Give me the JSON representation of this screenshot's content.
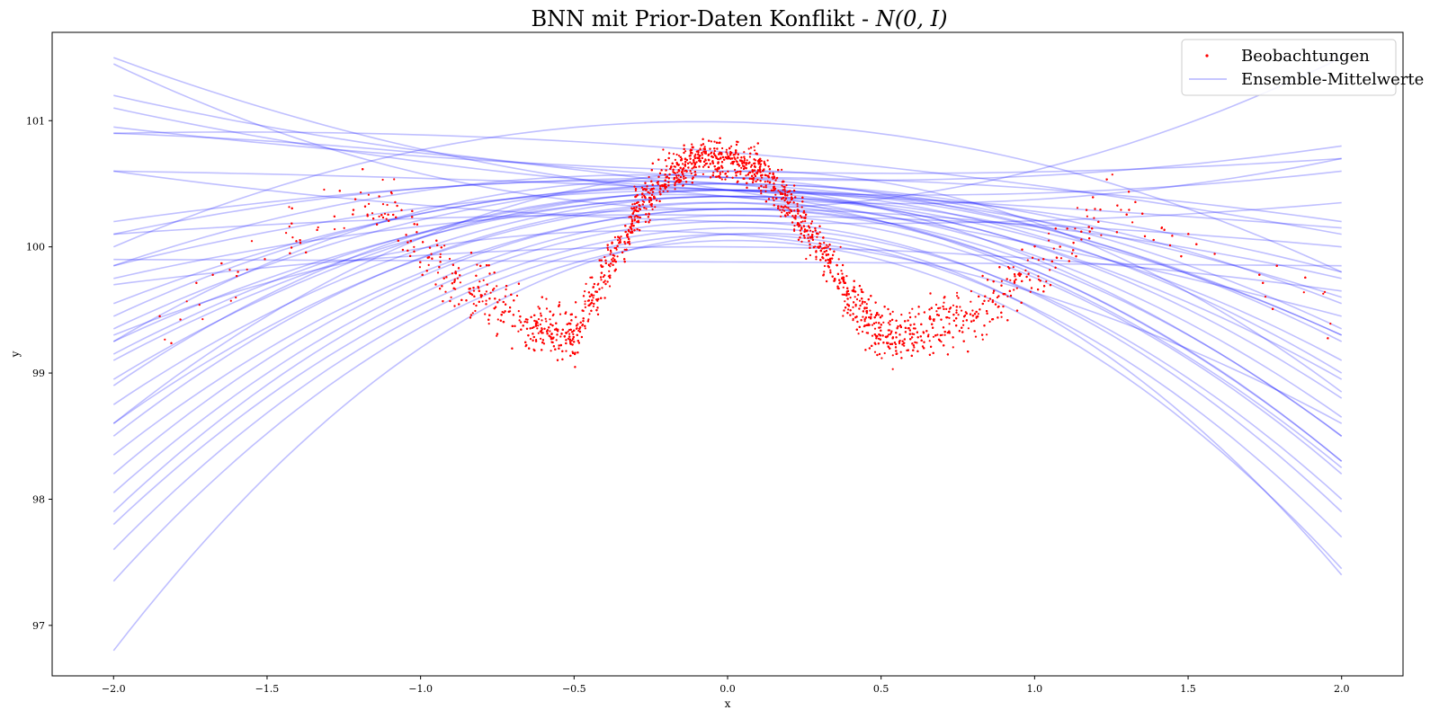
{
  "chart_data": {
    "type": "line",
    "title": "BNN mit Prior-Daten Konflikt - ",
    "title_math": "N(0, I)",
    "xlabel": "x",
    "ylabel": "y",
    "xlim": [
      -2.2,
      2.2
    ],
    "ylim": [
      96.6,
      101.7
    ],
    "x_ticks": [
      -2.0,
      -1.5,
      -1.0,
      -0.5,
      0.0,
      0.5,
      1.0,
      1.5,
      2.0
    ],
    "x_tick_labels": [
      "−2.0",
      "−1.5",
      "−1.0",
      "−0.5",
      "0.0",
      "0.5",
      "1.0",
      "1.5",
      "2.0"
    ],
    "y_ticks": [
      97,
      98,
      99,
      100,
      101
    ],
    "y_tick_labels": [
      "97",
      "98",
      "99",
      "100",
      "101"
    ],
    "grid": false,
    "legend": {
      "position": "top-right",
      "entries": [
        {
          "label": "Beobachtungen",
          "marker": "dot",
          "color": "#ff0000"
        },
        {
          "label": "Ensemble-Mittelwerte",
          "marker": "line",
          "color": "#0000ff",
          "alpha": 0.25
        }
      ]
    },
    "series": [
      {
        "name": "Beobachtungen",
        "kind": "scatter",
        "color": "#ff0000",
        "x_range": [
          -1.85,
          2.05
        ],
        "trend": [
          [
            -1.8,
            99.4
          ],
          [
            -1.6,
            99.8
          ],
          [
            -1.4,
            100.1
          ],
          [
            -1.2,
            100.3
          ],
          [
            -1.1,
            100.3
          ],
          [
            -1.0,
            100.0
          ],
          [
            -0.9,
            99.75
          ],
          [
            -0.8,
            99.6
          ],
          [
            -0.7,
            99.45
          ],
          [
            -0.6,
            99.35
          ],
          [
            -0.5,
            99.3
          ],
          [
            -0.4,
            99.8
          ],
          [
            -0.3,
            100.25
          ],
          [
            -0.2,
            100.55
          ],
          [
            -0.1,
            100.7
          ],
          [
            0.0,
            100.7
          ],
          [
            0.1,
            100.6
          ],
          [
            0.2,
            100.35
          ],
          [
            0.3,
            100.0
          ],
          [
            0.4,
            99.6
          ],
          [
            0.5,
            99.3
          ],
          [
            0.6,
            99.3
          ],
          [
            0.7,
            99.4
          ],
          [
            0.8,
            99.45
          ],
          [
            0.9,
            99.6
          ],
          [
            1.0,
            99.8
          ],
          [
            1.1,
            100.0
          ],
          [
            1.2,
            100.2
          ],
          [
            1.3,
            100.3
          ],
          [
            1.4,
            100.2
          ],
          [
            1.5,
            100.0
          ],
          [
            1.7,
            99.7
          ],
          [
            2.0,
            99.5
          ]
        ]
      },
      {
        "name": "Ensemble-Mittelwerte",
        "kind": "lines",
        "color": "#0000ff",
        "alpha": 0.25,
        "x": [
          -2.0,
          2.0
        ],
        "curves": [
          [
            96.8,
            100.1,
            97.4
          ],
          [
            97.35,
            100.05,
            97.45
          ],
          [
            97.6,
            100.1,
            97.7
          ],
          [
            97.8,
            100.15,
            98.0
          ],
          [
            97.9,
            100.2,
            97.9
          ],
          [
            98.05,
            100.25,
            98.2
          ],
          [
            98.2,
            100.3,
            98.3
          ],
          [
            98.35,
            100.3,
            98.5
          ],
          [
            98.5,
            100.35,
            98.3
          ],
          [
            98.6,
            100.35,
            98.65
          ],
          [
            98.75,
            100.4,
            98.8
          ],
          [
            98.9,
            100.4,
            98.25
          ],
          [
            98.95,
            100.45,
            99.0
          ],
          [
            99.1,
            100.4,
            99.1
          ],
          [
            99.15,
            100.45,
            99.25
          ],
          [
            99.25,
            100.5,
            98.5
          ],
          [
            99.25,
            100.4,
            99.3
          ],
          [
            99.35,
            100.5,
            99.35
          ],
          [
            99.45,
            100.45,
            98.95
          ],
          [
            99.55,
            100.5,
            99.55
          ],
          [
            99.7,
            100.0,
            99.65
          ],
          [
            99.75,
            100.3,
            99.75
          ],
          [
            99.85,
            100.45,
            99.8
          ],
          [
            99.9,
            99.88,
            99.85
          ],
          [
            100.1,
            100.25,
            100.0
          ],
          [
            100.1,
            100.5,
            99.6
          ],
          [
            100.2,
            100.55,
            100.2
          ],
          [
            100.6,
            100.45,
            100.15
          ],
          [
            100.6,
            100.2,
            100.35
          ],
          [
            100.9,
            100.45,
            99.45
          ],
          [
            100.95,
            100.6,
            100.7
          ],
          [
            101.1,
            100.45,
            100.6
          ],
          [
            101.2,
            100.55,
            100.8
          ],
          [
            101.45,
            100.3,
            101.5
          ],
          [
            101.5,
            100.4,
            100.7
          ],
          [
            100.9,
            100.75,
            100.1
          ],
          [
            100.0,
            100.99,
            99.8
          ],
          [
            99.85,
            100.55,
            99.3
          ],
          [
            99.3,
            100.1,
            98.6
          ],
          [
            98.6,
            100.6,
            98.85
          ]
        ]
      }
    ]
  }
}
